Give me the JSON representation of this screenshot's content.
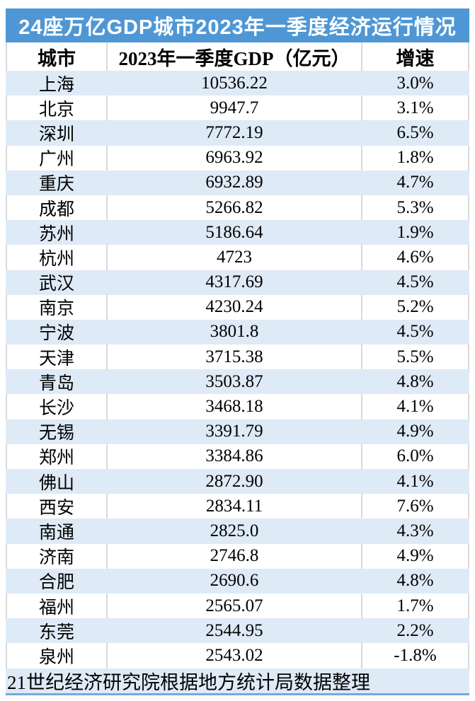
{
  "title": "24座万亿GDP城市2023年一季度经济运行情况",
  "source_note": "21世纪经济研究院根据地方统计局数据整理",
  "colors": {
    "title_band_bg": "#4F97D4",
    "title_text": "#ffffff",
    "stripe_row_bg": "#DEEAF6",
    "cell_divider": "#d9d9d9",
    "bottom_rule": "#77A8D9",
    "body_text": "#000000"
  },
  "chart_data": {
    "type": "table",
    "title": "24座万亿GDP城市2023年一季度经济运行情况",
    "columns": [
      "城市",
      "2023年一季度GDP（亿元）",
      "增速"
    ],
    "rows": [
      [
        "上海",
        "10536.22",
        "3.0%"
      ],
      [
        "北京",
        "9947.7",
        "3.1%"
      ],
      [
        "深圳",
        "7772.19",
        "6.5%"
      ],
      [
        "广州",
        "6963.92",
        "1.8%"
      ],
      [
        "重庆",
        "6932.89",
        "4.7%"
      ],
      [
        "成都",
        "5266.82",
        "5.3%"
      ],
      [
        "苏州",
        "5186.64",
        "1.9%"
      ],
      [
        "杭州",
        "4723",
        "4.6%"
      ],
      [
        "武汉",
        "4317.69",
        "4.5%"
      ],
      [
        "南京",
        "4230.24",
        "5.2%"
      ],
      [
        "宁波",
        "3801.8",
        "4.5%"
      ],
      [
        "天津",
        "3715.38",
        "5.5%"
      ],
      [
        "青岛",
        "3503.87",
        "4.8%"
      ],
      [
        "长沙",
        "3468.18",
        "4.1%"
      ],
      [
        "无锡",
        "3391.79",
        "4.9%"
      ],
      [
        "郑州",
        "3384.86",
        "6.0%"
      ],
      [
        "佛山",
        "2872.90",
        "4.1%"
      ],
      [
        "西安",
        "2834.11",
        "7.6%"
      ],
      [
        "南通",
        "2825.0",
        "4.3%"
      ],
      [
        "济南",
        "2746.8",
        "4.9%"
      ],
      [
        "合肥",
        "2690.6",
        "4.8%"
      ],
      [
        "福州",
        "2565.07",
        "1.7%"
      ],
      [
        "东莞",
        "2544.95",
        "2.2%"
      ],
      [
        "泉州",
        "2543.02",
        "-1.8%"
      ]
    ]
  }
}
